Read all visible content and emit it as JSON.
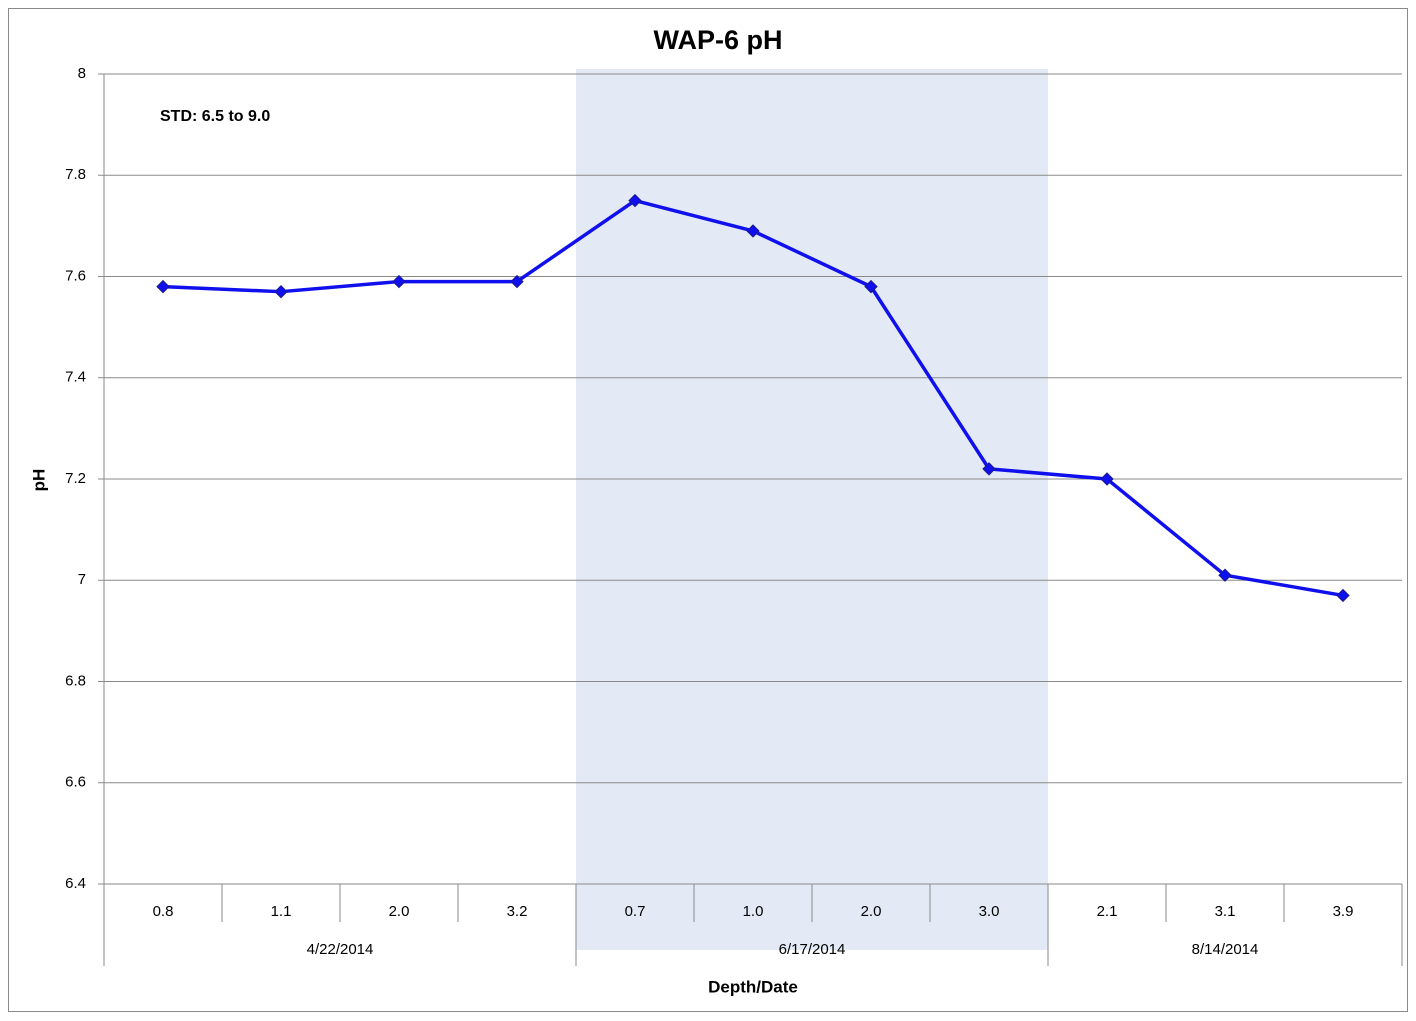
{
  "chart_data": {
    "type": "line",
    "title": "WAP-6 pH",
    "annotation": "STD: 6.5 to 9.0",
    "x_label": "Depth/Date",
    "y_label": "pH",
    "groups": [
      {
        "name": "4/22/2014",
        "categories": [
          "0.8",
          "1.1",
          "2.0",
          "3.2"
        ]
      },
      {
        "name": "6/17/2014",
        "categories": [
          "0.7",
          "1.0",
          "2.0",
          "3.0"
        ],
        "shade": "#e4eaf5"
      },
      {
        "name": "8/14/2014",
        "categories": [
          "2.1",
          "3.1",
          "3.9"
        ]
      }
    ],
    "series": [
      {
        "color": "#1010ee",
        "values": [
          7.58,
          7.57,
          7.59,
          7.59,
          7.75,
          7.69,
          7.58,
          7.22,
          7.2,
          7.01,
          6.97
        ]
      }
    ],
    "ylim": [
      6.4,
      8
    ],
    "yticks": [
      6.4,
      6.6,
      6.8,
      7,
      7.2,
      7.4,
      7.6,
      7.8,
      8
    ],
    "grid": true
  }
}
